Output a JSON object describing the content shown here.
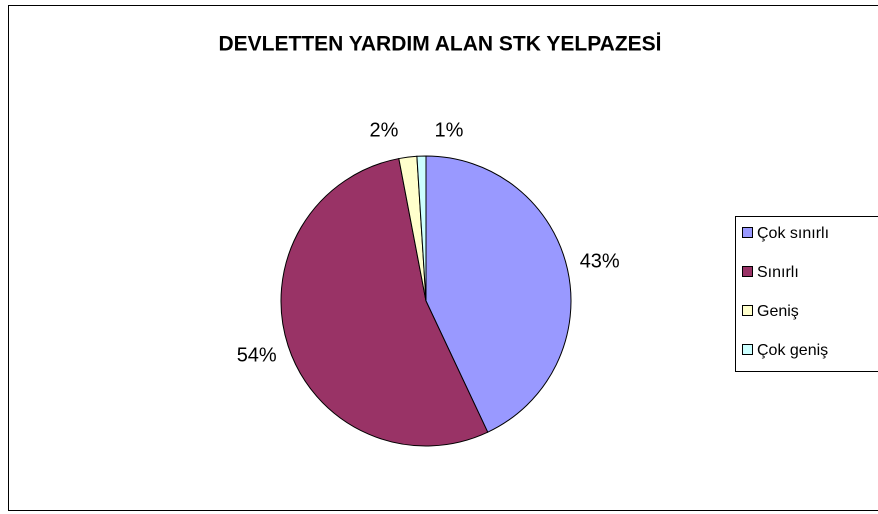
{
  "chart_data": {
    "type": "pie",
    "title": "DEVLETTEN YARDIM ALAN STK YELPAZESİ",
    "categories": [
      "Çok sınırlı",
      "Sınırlı",
      "Geniş",
      "Çok geniş"
    ],
    "values": [
      43,
      54,
      2,
      1
    ],
    "value_labels": [
      "43%",
      "54%",
      "2%",
      "1%"
    ],
    "colors": [
      "#9999ff",
      "#993366",
      "#ffffcc",
      "#ccffff"
    ]
  }
}
